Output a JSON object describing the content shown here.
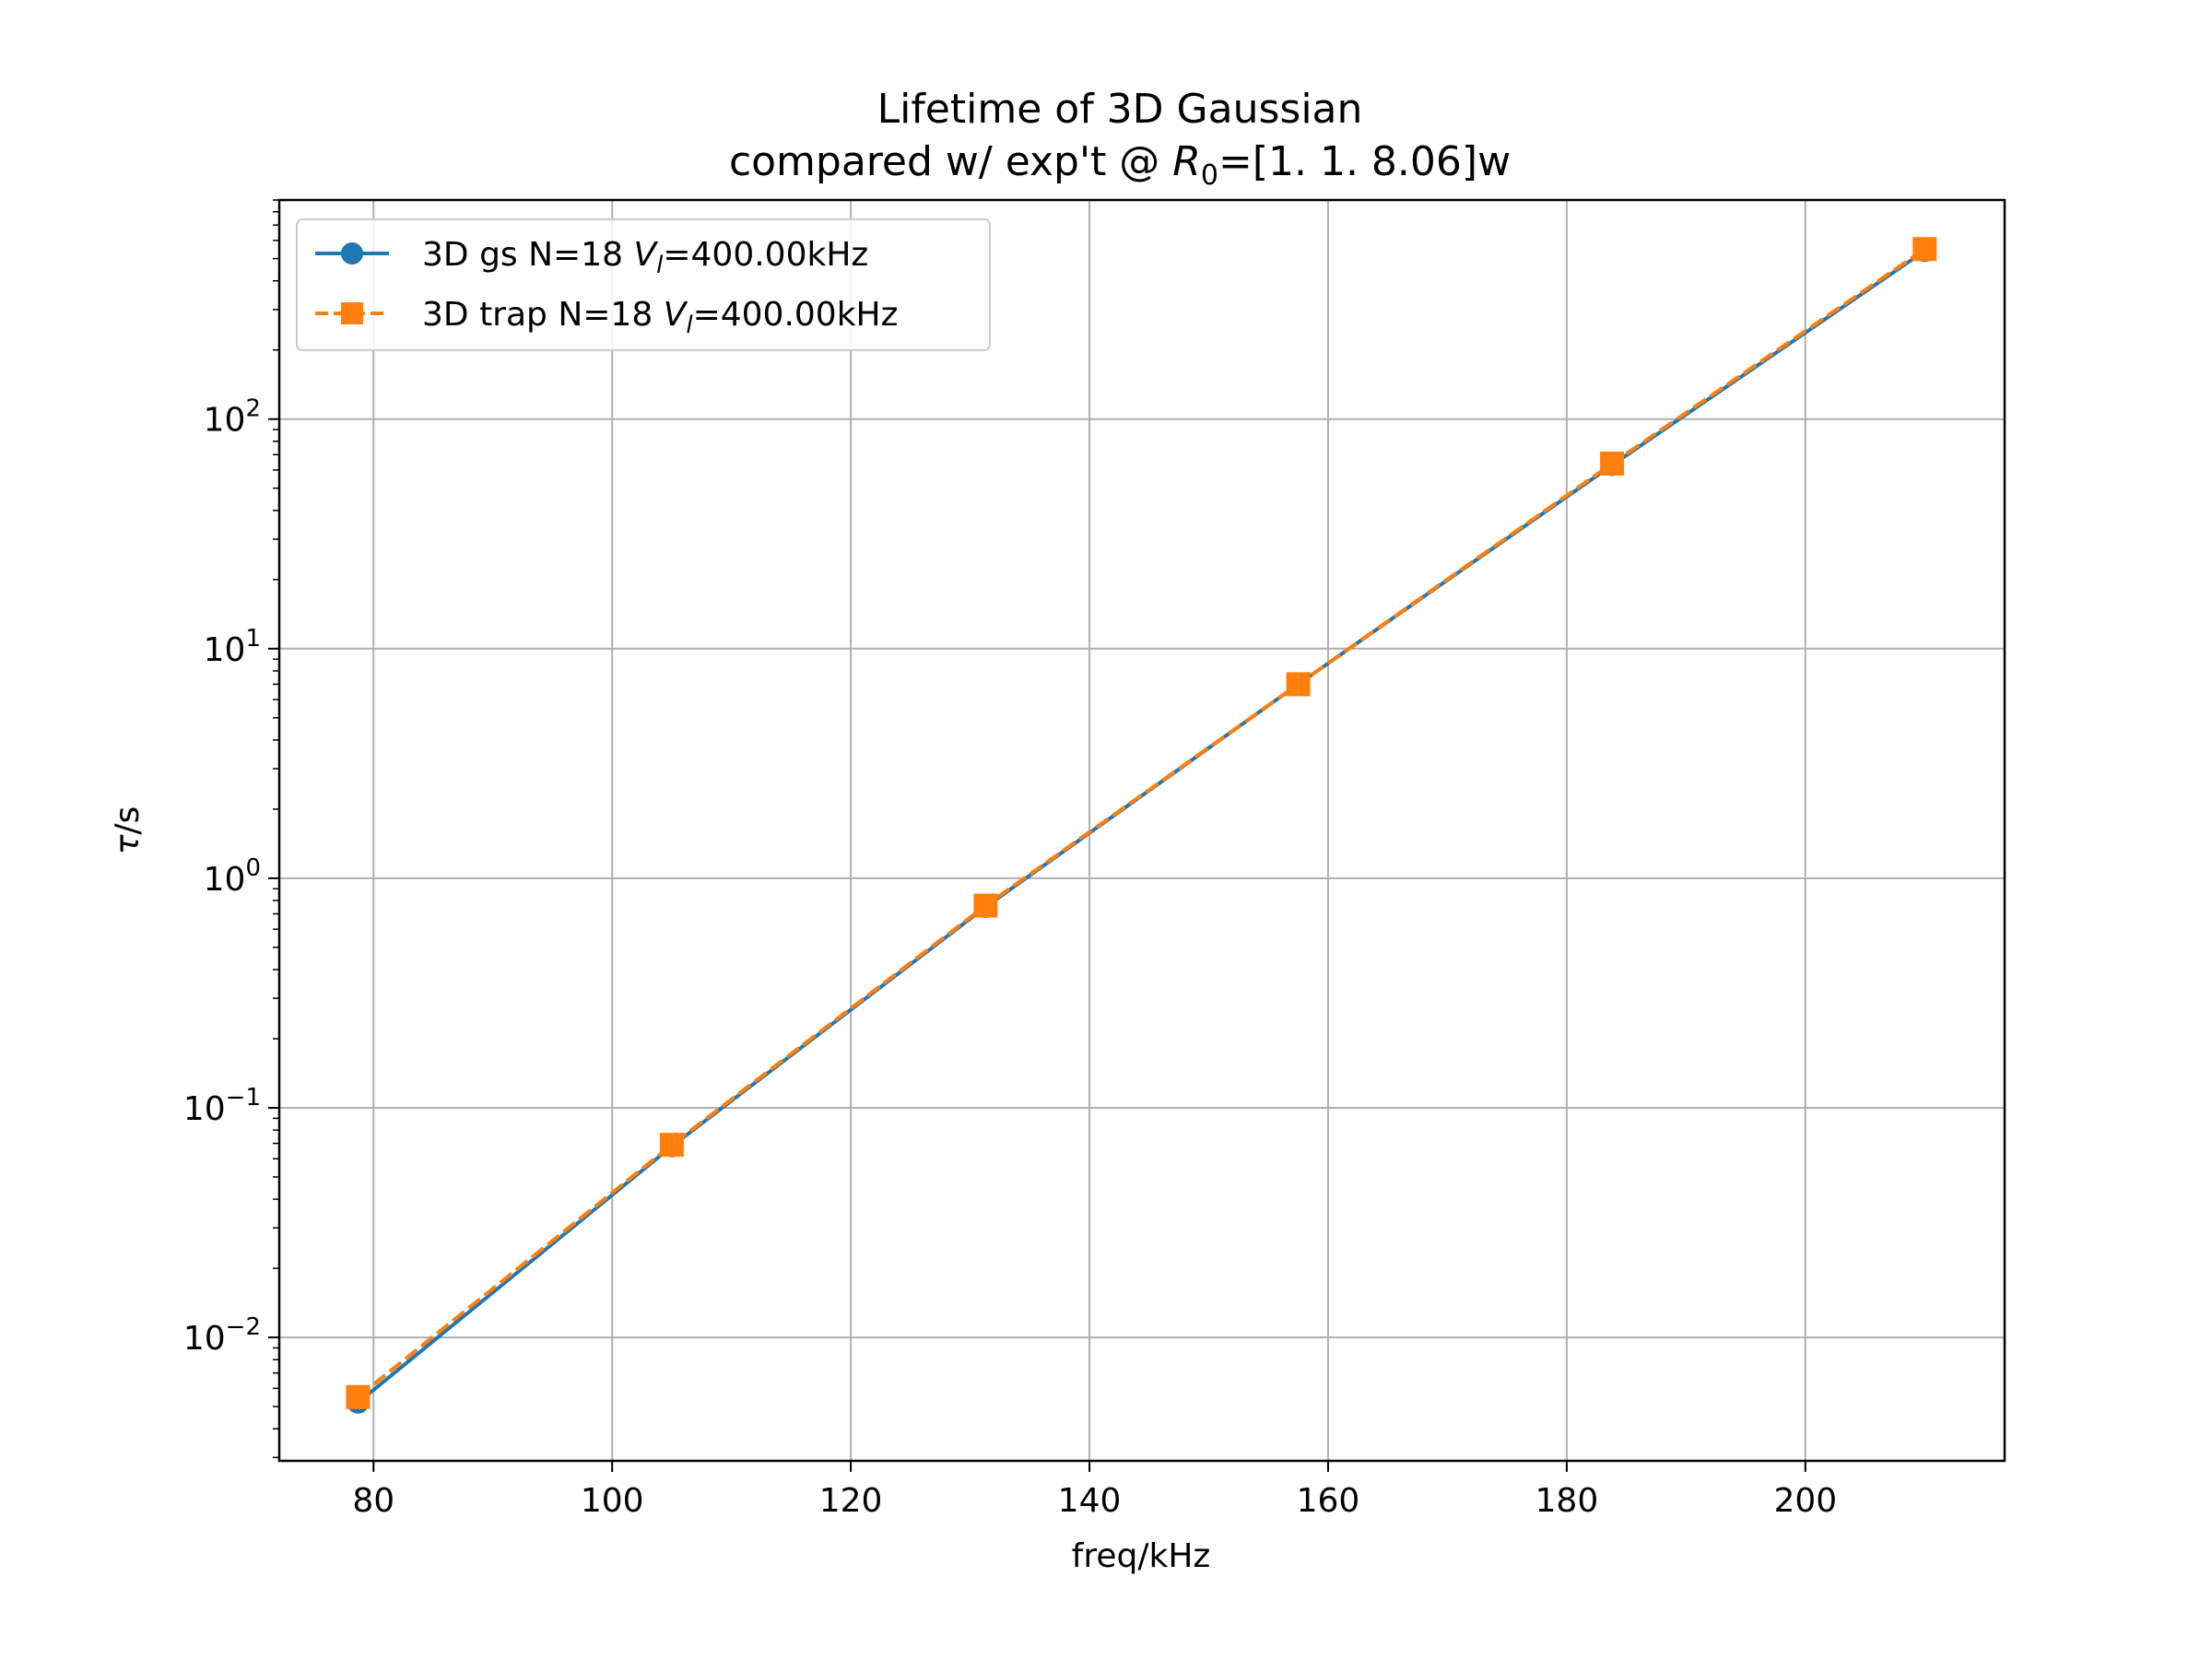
{
  "chart_data": {
    "type": "line",
    "title_line1": "Lifetime of 3D Gaussian",
    "title_line2_prefix": "compared w/ exp't @ ",
    "title_line2_var": "R",
    "title_line2_sub": "0",
    "title_line2_suffix": "=[1.   1.   8.06]w",
    "xlabel": "freq/kHz",
    "ylabel_var": "τ",
    "ylabel_suffix": "/s",
    "xlim": [
      72.1,
      216.7
    ],
    "ylim": [
      0.0029,
      900
    ],
    "yscale": "log",
    "grid": true,
    "legend_position": "top-left",
    "x_ticks": [
      80,
      100,
      120,
      140,
      160,
      180,
      200
    ],
    "x_tick_labels": [
      "80",
      "100",
      "120",
      "140",
      "160",
      "180",
      "200"
    ],
    "y_ticks": [
      {
        "value": 0.01,
        "base": "10",
        "exp": "−2"
      },
      {
        "value": 0.1,
        "base": "10",
        "exp": "−1"
      },
      {
        "value": 1,
        "base": "10",
        "exp": "0"
      },
      {
        "value": 10,
        "base": "10",
        "exp": "1"
      },
      {
        "value": 100,
        "base": "10",
        "exp": "2"
      }
    ],
    "series": [
      {
        "name_prefix": "3D gs N=18 ",
        "name_var": "V",
        "name_sub": "l",
        "name_suffix": "=400.00kHz",
        "color": "#1f77b4",
        "marker": "circle",
        "line_style": "solid",
        "x": [
          78.7,
          105.0,
          131.3,
          157.5,
          183.8,
          210.0
        ],
        "y": [
          0.0052,
          0.068,
          0.75,
          7.0,
          63,
          540
        ]
      },
      {
        "name_prefix": "3D trap N=18 ",
        "name_var": "V",
        "name_sub": "l",
        "name_suffix": "=400.00kHz",
        "color": "#ff7f0e",
        "marker": "square",
        "line_style": "dashed",
        "x": [
          78.7,
          105.0,
          131.3,
          157.5,
          183.8,
          210.0
        ],
        "y": [
          0.0055,
          0.069,
          0.76,
          7.0,
          64,
          550
        ]
      }
    ]
  }
}
